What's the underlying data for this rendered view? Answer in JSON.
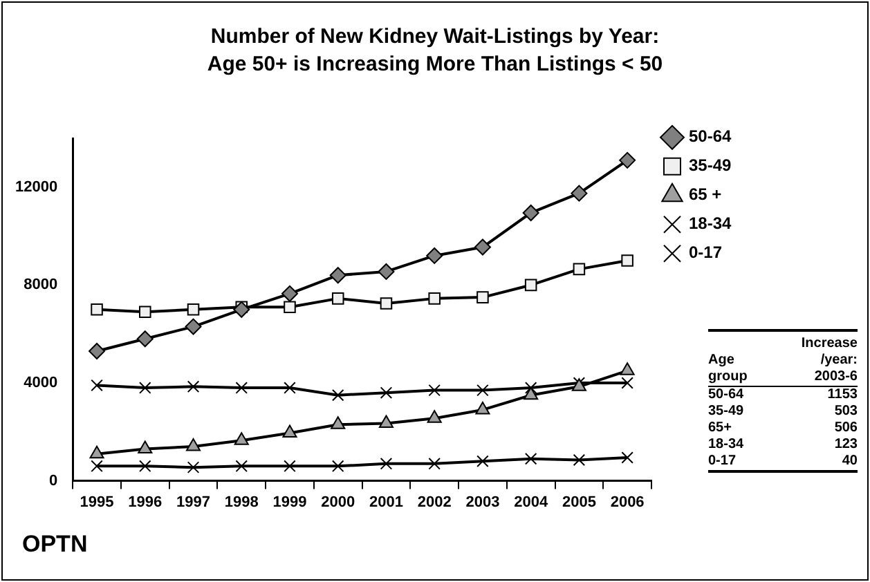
{
  "chart_data": {
    "type": "line",
    "title": "Number of New Kidney Wait-Listings by Year:",
    "subtitle": "Age 50+ is Increasing More Than Listings < 50",
    "categories": [
      "1995",
      "1996",
      "1997",
      "1998",
      "1999",
      "2000",
      "2001",
      "2002",
      "2003",
      "2004",
      "2005",
      "2006"
    ],
    "series": [
      {
        "name": "50-64",
        "color": "#808080",
        "marker": "diamond",
        "values": [
          5300,
          5800,
          6300,
          7000,
          7650,
          8400,
          8550,
          9200,
          9550,
          10950,
          11750,
          13100
        ]
      },
      {
        "name": "35-49",
        "color": "#f0f0f0",
        "marker": "square",
        "values": [
          7000,
          6900,
          7000,
          7100,
          7100,
          7450,
          7250,
          7450,
          7500,
          8000,
          8650,
          9000
        ]
      },
      {
        "name": "65 +",
        "color": "#a0a0a0",
        "marker": "triangle",
        "values": [
          1100,
          1300,
          1400,
          1650,
          1950,
          2300,
          2350,
          2550,
          2900,
          3500,
          3850,
          4500
        ]
      },
      {
        "name": "18-34",
        "color": "#000000",
        "marker": "cross",
        "values": [
          3900,
          3800,
          3850,
          3800,
          3800,
          3500,
          3600,
          3700,
          3700,
          3800,
          4000,
          4000
        ]
      },
      {
        "name": "0-17",
        "color": "#000000",
        "marker": "cross",
        "values": [
          600,
          600,
          550,
          600,
          600,
          600,
          700,
          700,
          800,
          900,
          850,
          950
        ]
      }
    ],
    "ylim": [
      0,
      14000
    ],
    "yticks": [
      0,
      4000,
      8000,
      12000
    ],
    "grid": false,
    "legend": "right",
    "line_style": "solid",
    "annotations": [
      "Age group",
      "Increase /year: 2003-6",
      "50-64",
      "1153",
      "35-49",
      "503",
      "65+",
      "506",
      "18-34",
      "123",
      "0-17",
      "40",
      "OPTN"
    ]
  }
}
